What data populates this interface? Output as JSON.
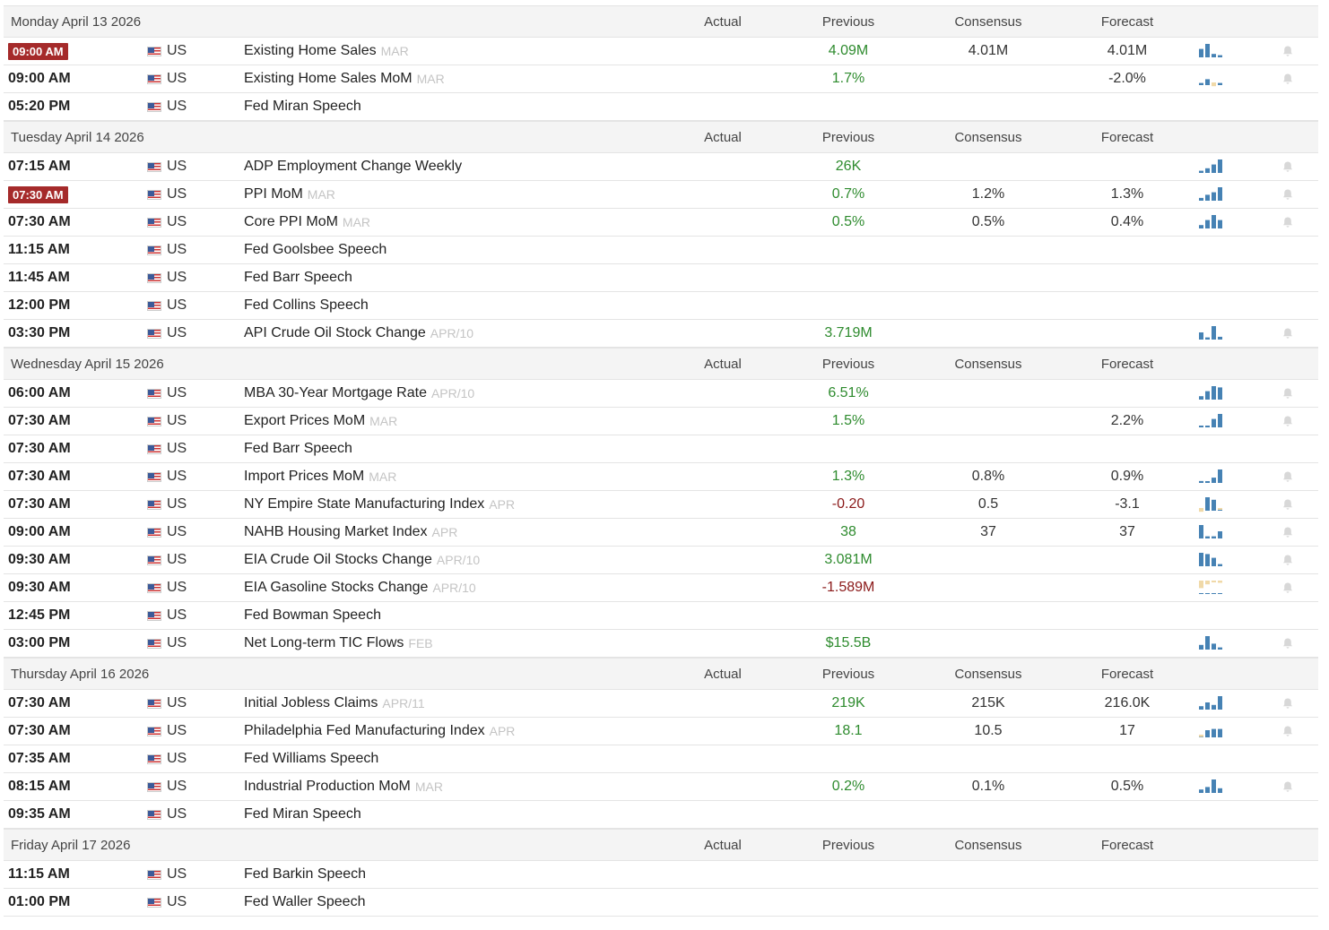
{
  "colors": {
    "positive": "#2e8b2e",
    "negative": "#8b1a1a",
    "badge": "#a52a2a",
    "bar_blue": "#4682b4",
    "bar_tan": "#f0d9a8"
  },
  "icons": {
    "flag": "us-flag-icon",
    "chart": "mini-bar-chart-icon",
    "bell": "bell-icon"
  },
  "columns": {
    "actual": "Actual",
    "previous": "Previous",
    "consensus": "Consensus",
    "forecast": "Forecast"
  },
  "days": [
    {
      "date": "Monday April 13 2026",
      "events": [
        {
          "time": "09:00 AM",
          "badge": true,
          "country": "US",
          "name": "Existing Home Sales",
          "ref": "MAR",
          "actual": "",
          "previous": "4.09M",
          "prev_sign": "pos",
          "consensus": "4.01M",
          "forecast": "4.01M",
          "chart": [
            0.6,
            1,
            0.2,
            0.1
          ],
          "chart_tan": [],
          "bell": true
        },
        {
          "time": "09:00 AM",
          "badge": false,
          "country": "US",
          "name": "Existing Home Sales MoM",
          "ref": "MAR",
          "actual": "",
          "previous": "1.7%",
          "prev_sign": "pos",
          "consensus": "",
          "forecast": "-2.0%",
          "chart": [
            0.1,
            0.4,
            -0.5,
            0.1
          ],
          "chart_tan": [
            2
          ],
          "bell": true
        },
        {
          "time": "05:20 PM",
          "badge": false,
          "country": "US",
          "name": "Fed Miran Speech",
          "ref": "",
          "actual": "",
          "previous": "",
          "prev_sign": "",
          "consensus": "",
          "forecast": "",
          "chart": [],
          "chart_tan": [],
          "bell": false
        }
      ]
    },
    {
      "date": "Tuesday April 14 2026",
      "events": [
        {
          "time": "07:15 AM",
          "badge": false,
          "country": "US",
          "name": "ADP Employment Change Weekly",
          "ref": "",
          "actual": "",
          "previous": "26K",
          "prev_sign": "pos",
          "consensus": "",
          "forecast": "",
          "chart": [
            0.1,
            0.3,
            0.6,
            1
          ],
          "chart_tan": [],
          "bell": true
        },
        {
          "time": "07:30 AM",
          "badge": true,
          "country": "US",
          "name": "PPI MoM",
          "ref": "MAR",
          "actual": "",
          "previous": "0.7%",
          "prev_sign": "pos",
          "consensus": "1.2%",
          "forecast": "1.3%",
          "chart": [
            0.15,
            0.4,
            0.6,
            1
          ],
          "chart_tan": [],
          "bell": true
        },
        {
          "time": "07:30 AM",
          "badge": false,
          "country": "US",
          "name": "Core PPI MoM",
          "ref": "MAR",
          "actual": "",
          "previous": "0.5%",
          "prev_sign": "pos",
          "consensus": "0.5%",
          "forecast": "0.4%",
          "chart": [
            0.2,
            0.6,
            1,
            0.6
          ],
          "chart_tan": [],
          "bell": true
        },
        {
          "time": "11:15 AM",
          "badge": false,
          "country": "US",
          "name": "Fed Goolsbee Speech",
          "ref": "",
          "actual": "",
          "previous": "",
          "prev_sign": "",
          "consensus": "",
          "forecast": "",
          "chart": [],
          "chart_tan": [],
          "bell": false
        },
        {
          "time": "11:45 AM",
          "badge": false,
          "country": "US",
          "name": "Fed Barr Speech",
          "ref": "",
          "actual": "",
          "previous": "",
          "prev_sign": "",
          "consensus": "",
          "forecast": "",
          "chart": [],
          "chart_tan": [],
          "bell": false
        },
        {
          "time": "12:00 PM",
          "badge": false,
          "country": "US",
          "name": "Fed Collins Speech",
          "ref": "",
          "actual": "",
          "previous": "",
          "prev_sign": "",
          "consensus": "",
          "forecast": "",
          "chart": [],
          "chart_tan": [],
          "bell": false
        },
        {
          "time": "03:30 PM",
          "badge": false,
          "country": "US",
          "name": "API Crude Oil Stock Change",
          "ref": "APR/10",
          "actual": "",
          "previous": "3.719M",
          "prev_sign": "pos",
          "consensus": "",
          "forecast": "",
          "chart": [
            0.5,
            0.1,
            1,
            0.15
          ],
          "chart_tan": [],
          "bell": true
        }
      ]
    },
    {
      "date": "Wednesday April 15 2026",
      "events": [
        {
          "time": "06:00 AM",
          "badge": false,
          "country": "US",
          "name": "MBA 30-Year Mortgage Rate",
          "ref": "APR/10",
          "actual": "",
          "previous": "6.51%",
          "prev_sign": "pos",
          "consensus": "",
          "forecast": "",
          "chart": [
            0.2,
            0.6,
            1,
            0.9
          ],
          "chart_tan": [],
          "bell": true
        },
        {
          "time": "07:30 AM",
          "badge": false,
          "country": "US",
          "name": "Export Prices MoM",
          "ref": "MAR",
          "actual": "",
          "previous": "1.5%",
          "prev_sign": "pos",
          "consensus": "",
          "forecast": "2.2%",
          "chart": [
            0,
            0,
            0.6,
            1
          ],
          "chart_tan": [],
          "bell": true
        },
        {
          "time": "07:30 AM",
          "badge": false,
          "country": "US",
          "name": "Fed Barr Speech",
          "ref": "",
          "actual": "",
          "previous": "",
          "prev_sign": "",
          "consensus": "",
          "forecast": "",
          "chart": [],
          "chart_tan": [],
          "bell": false
        },
        {
          "time": "07:30 AM",
          "badge": false,
          "country": "US",
          "name": "Import Prices MoM",
          "ref": "MAR",
          "actual": "",
          "previous": "1.3%",
          "prev_sign": "pos",
          "consensus": "0.8%",
          "forecast": "0.9%",
          "chart": [
            0.08,
            0,
            0.35,
            1
          ],
          "chart_tan": [],
          "bell": true
        },
        {
          "time": "07:30 AM",
          "badge": false,
          "country": "US",
          "name": "NY Empire State Manufacturing Index",
          "ref": "APR",
          "actual": "",
          "previous": "-0.20",
          "prev_sign": "neg",
          "consensus": "0.5",
          "forecast": "-3.1",
          "chart": [
            -0.5,
            1,
            0.8,
            -0.1
          ],
          "chart_tan": [
            0,
            3
          ],
          "bell": true
        },
        {
          "time": "09:00 AM",
          "badge": false,
          "country": "US",
          "name": "NAHB Housing Market Index",
          "ref": "APR",
          "actual": "",
          "previous": "38",
          "prev_sign": "pos",
          "consensus": "37",
          "forecast": "37",
          "chart": [
            1,
            0.1,
            0.1,
            0.5
          ],
          "chart_tan": [],
          "bell": true
        },
        {
          "time": "09:30 AM",
          "badge": false,
          "country": "US",
          "name": "EIA Crude Oil Stocks Change",
          "ref": "APR/10",
          "actual": "",
          "previous": "3.081M",
          "prev_sign": "pos",
          "consensus": "",
          "forecast": "",
          "chart": [
            1,
            0.9,
            0.6,
            0.1
          ],
          "chart_tan": [],
          "bell": true
        },
        {
          "time": "09:30 AM",
          "badge": false,
          "country": "US",
          "name": "EIA Gasoline Stocks Change",
          "ref": "APR/10",
          "actual": "",
          "previous": "-1.589M",
          "prev_sign": "neg",
          "consensus": "",
          "forecast": "",
          "chart": [
            -1,
            -0.5,
            -0.2,
            -0.3
          ],
          "chart_tan": [
            0,
            1,
            2,
            3
          ],
          "bell": true
        },
        {
          "time": "12:45 PM",
          "badge": false,
          "country": "US",
          "name": "Fed Bowman Speech",
          "ref": "",
          "actual": "",
          "previous": "",
          "prev_sign": "",
          "consensus": "",
          "forecast": "",
          "chart": [],
          "chart_tan": [],
          "bell": false
        },
        {
          "time": "03:00 PM",
          "badge": false,
          "country": "US",
          "name": "Net Long-term TIC Flows",
          "ref": "FEB",
          "actual": "",
          "previous": "$15.5B",
          "prev_sign": "pos",
          "consensus": "",
          "forecast": "",
          "chart": [
            0.3,
            1,
            0.4,
            0.1
          ],
          "chart_tan": [],
          "bell": true
        }
      ]
    },
    {
      "date": "Thursday April 16 2026",
      "events": [
        {
          "time": "07:30 AM",
          "badge": false,
          "country": "US",
          "name": "Initial Jobless Claims",
          "ref": "APR/11",
          "actual": "",
          "previous": "219K",
          "prev_sign": "pos",
          "consensus": "215K",
          "forecast": "216.0K",
          "chart": [
            0.2,
            0.5,
            0.3,
            1
          ],
          "chart_tan": [],
          "bell": true
        },
        {
          "time": "07:30 AM",
          "badge": false,
          "country": "US",
          "name": "Philadelphia Fed Manufacturing Index",
          "ref": "APR",
          "actual": "",
          "previous": "18.1",
          "prev_sign": "pos",
          "consensus": "10.5",
          "forecast": "17",
          "chart": [
            -0.3,
            0.5,
            0.6,
            0.6
          ],
          "chart_tan": [
            0
          ],
          "bell": true
        },
        {
          "time": "07:35 AM",
          "badge": false,
          "country": "US",
          "name": "Fed Williams Speech",
          "ref": "",
          "actual": "",
          "previous": "",
          "prev_sign": "",
          "consensus": "",
          "forecast": "",
          "chart": [],
          "chart_tan": [],
          "bell": false
        },
        {
          "time": "08:15 AM",
          "badge": false,
          "country": "US",
          "name": "Industrial Production MoM",
          "ref": "MAR",
          "actual": "",
          "previous": "0.2%",
          "prev_sign": "pos",
          "consensus": "0.1%",
          "forecast": "0.5%",
          "chart": [
            0.2,
            0.4,
            1,
            0.3
          ],
          "chart_tan": [],
          "bell": true
        },
        {
          "time": "09:35 AM",
          "badge": false,
          "country": "US",
          "name": "Fed Miran Speech",
          "ref": "",
          "actual": "",
          "previous": "",
          "prev_sign": "",
          "consensus": "",
          "forecast": "",
          "chart": [],
          "chart_tan": [],
          "bell": false
        }
      ]
    },
    {
      "date": "Friday April 17 2026",
      "events": [
        {
          "time": "11:15 AM",
          "badge": false,
          "country": "US",
          "name": "Fed Barkin Speech",
          "ref": "",
          "actual": "",
          "previous": "",
          "prev_sign": "",
          "consensus": "",
          "forecast": "",
          "chart": [],
          "chart_tan": [],
          "bell": false
        },
        {
          "time": "01:00 PM",
          "badge": false,
          "country": "US",
          "name": "Fed Waller Speech",
          "ref": "",
          "actual": "",
          "previous": "",
          "prev_sign": "",
          "consensus": "",
          "forecast": "",
          "chart": [],
          "chart_tan": [],
          "bell": false
        }
      ]
    }
  ]
}
